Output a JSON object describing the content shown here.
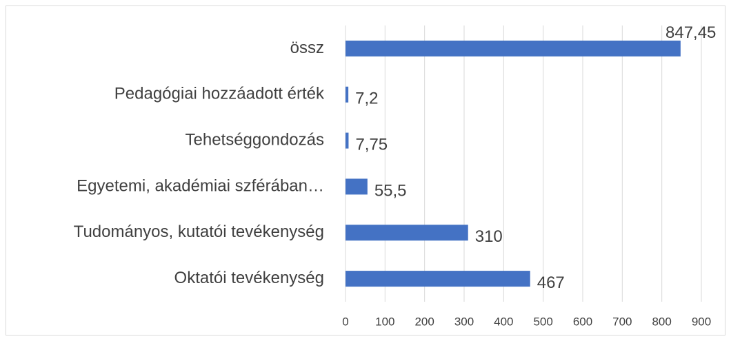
{
  "chart_data": {
    "type": "bar",
    "orientation": "horizontal",
    "categories": [
      "össz",
      "Pedagógiai hozzáadott érték",
      "Tehetséggondozás",
      "Egyetemi, akadémiai szférában…",
      "Tudományos, kutatói tevékenység",
      "Oktatói tevékenység"
    ],
    "values": [
      847.45,
      7.2,
      7.75,
      55.5,
      310,
      467
    ],
    "value_labels": [
      "847,45",
      "7,2",
      "7,75",
      "55,5",
      "310",
      "467"
    ],
    "color": "#4472c4",
    "xlim": [
      0,
      900
    ],
    "xticks": [
      0,
      100,
      200,
      300,
      400,
      500,
      600,
      700,
      800,
      900
    ],
    "grid": true
  }
}
